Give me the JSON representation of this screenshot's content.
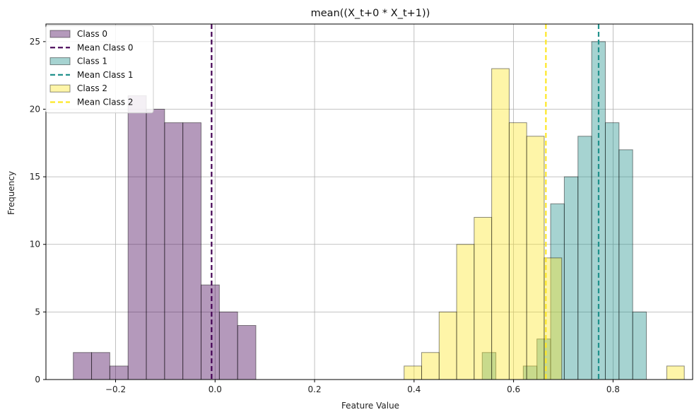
{
  "chart_data": {
    "type": "bar",
    "title": "mean((X_t+0 * X_t+1))",
    "xlabel": "Feature Value",
    "ylabel": "Frequency",
    "xlim": [
      -0.34,
      0.96
    ],
    "ylim": [
      0,
      26.3
    ],
    "x_ticks": [
      -0.2,
      0.0,
      0.2,
      0.4,
      0.6,
      0.8
    ],
    "x_tick_labels": [
      "−0.2",
      "0.0",
      "0.2",
      "0.4",
      "0.6",
      "0.8"
    ],
    "y_ticks": [
      0,
      5,
      10,
      15,
      20,
      25
    ],
    "y_tick_labels": [
      "0",
      "5",
      "10",
      "15",
      "20",
      "25"
    ],
    "grid": true,
    "legend_position": "top-left",
    "series": [
      {
        "name": "Class 0",
        "color": "#440154",
        "bin_start": -0.285,
        "bin_width": 0.0367,
        "counts": [
          2,
          2,
          1,
          21,
          20,
          19,
          19,
          7,
          5,
          4
        ],
        "mean": -0.007,
        "mean_label": "Mean Class 0"
      },
      {
        "name": "Class 1",
        "color": "#21918c",
        "bin_start": 0.537,
        "bin_width": 0.0275,
        "counts": [
          2,
          0,
          0,
          1,
          3,
          13,
          15,
          18,
          25,
          19,
          17,
          5
        ],
        "mean": 0.771,
        "mean_label": "Mean Class 1"
      },
      {
        "name": "Class 2",
        "color": "#fde725",
        "bin_start": 0.38,
        "bin_width": 0.0352,
        "counts": [
          1,
          2,
          5,
          10,
          12,
          23,
          19,
          18,
          9,
          0,
          0,
          0,
          0,
          0,
          0,
          1
        ],
        "counts_note": "",
        "mean": 0.665,
        "mean_label": "Mean Class 2"
      }
    ]
  }
}
